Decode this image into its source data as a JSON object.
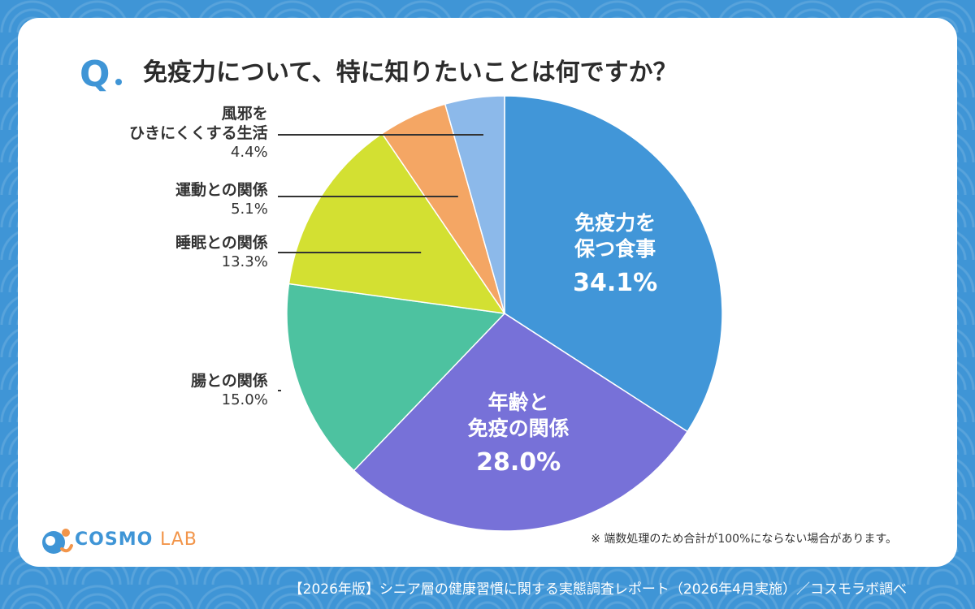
{
  "header": {
    "q_mark": "Q",
    "question": "免疫力について、特に知りたいことは何ですか？"
  },
  "chart_data": {
    "type": "pie",
    "start_angle": "12 o'clock",
    "direction": "clockwise",
    "slices": [
      {
        "label_lines": [
          "免疫力を",
          "保つ食事"
        ],
        "value": 34.1,
        "value_text": "34.1%",
        "color": "#4196d8"
      },
      {
        "label_lines": [
          "年齢と",
          "免疫の関係"
        ],
        "value": 28.0,
        "value_text": "28.0%",
        "color": "#7771d8"
      },
      {
        "label_lines": [
          "腸との関係"
        ],
        "value": 15.0,
        "value_text": "15.0%",
        "color": "#4dc2a0"
      },
      {
        "label_lines": [
          "睡眠との関係"
        ],
        "value": 13.3,
        "value_text": "13.3%",
        "color": "#d3e032"
      },
      {
        "label_lines": [
          "運動との関係"
        ],
        "value": 5.1,
        "value_text": "5.1%",
        "color": "#f4a664"
      },
      {
        "label_lines": [
          "風邪を",
          "ひきにくくする生活"
        ],
        "value": 4.4,
        "value_text": "4.4%",
        "color": "#8cb9ea"
      }
    ]
  },
  "note": "※ 端数処理のため合計が100%にならない場合があります。",
  "logo": {
    "brand": "COSMO",
    "brand_suffix": "LAB"
  },
  "footer": "【2026年版】シニア層の健康習慣に関する実態調査レポート（2026年4月実施）／コスモラボ調べ"
}
